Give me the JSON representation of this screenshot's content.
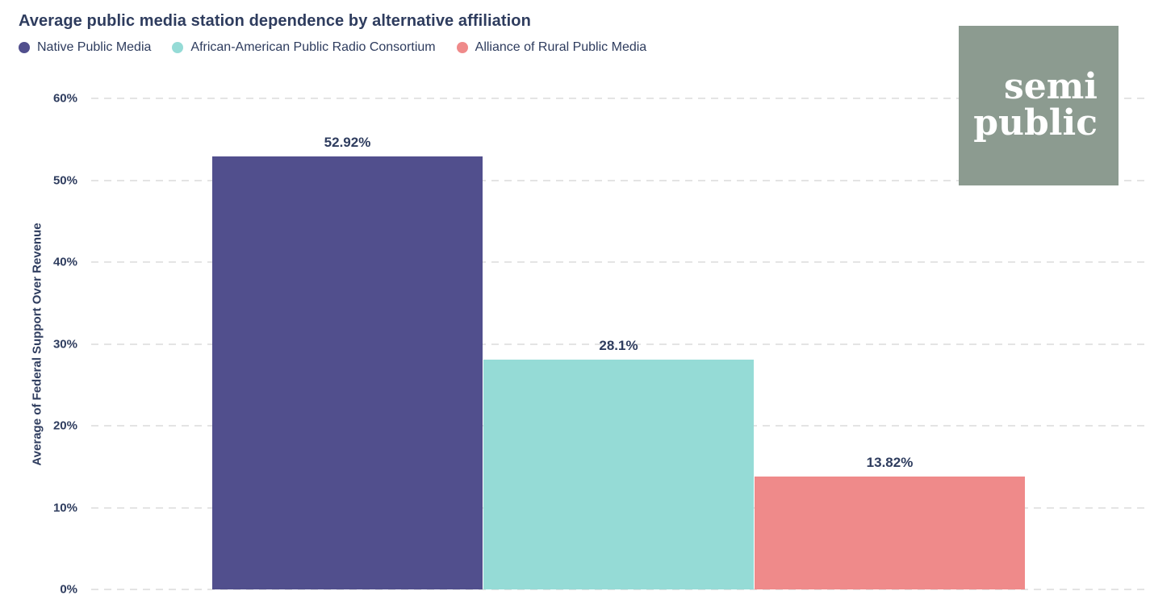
{
  "title": "Average public media station dependence by alternative affiliation",
  "legend": [
    {
      "label": "Native Public Media",
      "color": "#514f8d"
    },
    {
      "label": "African-American Public Radio Consortium",
      "color": "#95dbd6"
    },
    {
      "label": "Alliance of Rural Public Media",
      "color": "#ef8a8a"
    }
  ],
  "logo": {
    "line1": "semi",
    "line2": "public",
    "background": "#8c9b90",
    "text_color": "#ffffff"
  },
  "colors": {
    "text_navy": "#2e3c5e",
    "gridline": "#e4e4e4",
    "background": "#ffffff"
  },
  "chart_data": {
    "type": "bar",
    "title": "Average public media station dependence by alternative affiliation",
    "categories": [
      "Native Public Media",
      "African-American Public Radio Consortium",
      "Alliance of Rural Public Media"
    ],
    "values": [
      52.92,
      28.1,
      13.82
    ],
    "value_labels": [
      "52.92%",
      "28.1%",
      "13.82%"
    ],
    "colors": [
      "#514f8d",
      "#95dbd6",
      "#ef8a8a"
    ],
    "xlabel": "",
    "ylabel": "Average of Federal Support Over Revenue",
    "ylim": [
      0,
      60
    ],
    "yticks": [
      "0%",
      "10%",
      "20%",
      "30%",
      "40%",
      "50%",
      "60%"
    ],
    "grid": "horizontal-dashed",
    "legend_position": "top-left"
  }
}
